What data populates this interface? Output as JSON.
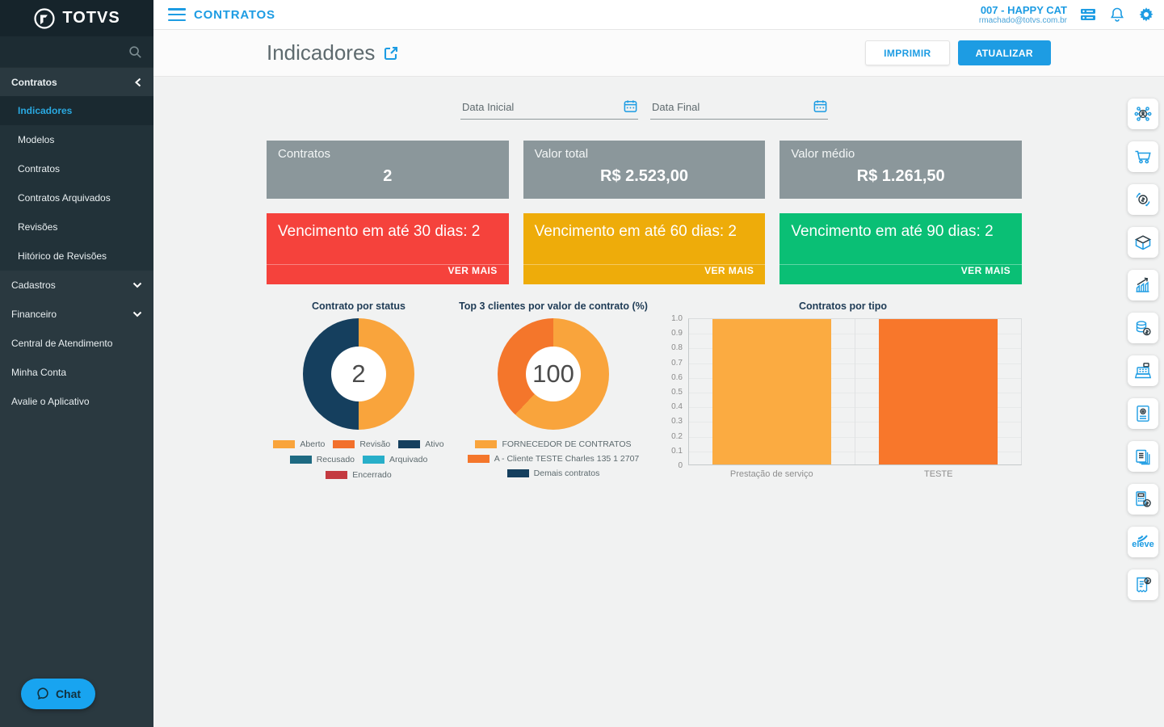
{
  "topbar": {
    "app_title": "CONTRATOS",
    "user_name": "007 - HAPPY CAT",
    "user_email": "rmachado@totvs.com.br"
  },
  "sidebar": {
    "logo_text": "TOTVS",
    "section_label": "Contratos",
    "submenu": [
      {
        "label": "Indicadores",
        "active": true
      },
      {
        "label": "Modelos",
        "active": false
      },
      {
        "label": "Contratos",
        "active": false
      },
      {
        "label": "Contratos Arquivados",
        "active": false
      },
      {
        "label": "Revisões",
        "active": false
      },
      {
        "label": "Hitórico de Revisões",
        "active": false
      }
    ],
    "items": [
      {
        "label": "Cadastros",
        "chevron": true
      },
      {
        "label": "Financeiro",
        "chevron": true
      },
      {
        "label": "Central de Atendimento",
        "chevron": false
      },
      {
        "label": "Minha Conta",
        "chevron": false
      },
      {
        "label": "Avalie o Aplicativo",
        "chevron": false
      }
    ],
    "chat_label": "Chat"
  },
  "header": {
    "title": "Indicadores",
    "print_label": "IMPRIMIR",
    "refresh_label": "ATUALIZAR"
  },
  "filters": {
    "start_placeholder": "Data Inicial",
    "end_placeholder": "Data Final"
  },
  "stat_cards": [
    {
      "label": "Contratos",
      "value": "2"
    },
    {
      "label": "Valor total",
      "value": "R$ 2.523,00"
    },
    {
      "label": "Valor médio",
      "value": "R$ 1.261,50"
    }
  ],
  "alert_cards": [
    {
      "text": "Vencimento em até 30 dias: 2",
      "action": "VER MAIS",
      "color": "#f5423c"
    },
    {
      "text": "Vencimento em até 60 dias: 2",
      "action": "VER MAIS",
      "color": "#eeac0a"
    },
    {
      "text": "Vencimento em até 90 dias: 2",
      "action": "VER MAIS",
      "color": "#0abf75"
    }
  ],
  "chart_data": [
    {
      "type": "donut",
      "title": "Contrato por status",
      "center_value": "2",
      "slices": [
        {
          "label": "Aberto",
          "value": 50,
          "color": "#f9a43c"
        },
        {
          "label": "Ativo",
          "value": 50,
          "color": "#153f5e"
        }
      ],
      "legend": [
        {
          "label": "Aberto",
          "color": "#f9a43c"
        },
        {
          "label": "Revisão",
          "color": "#f2702c"
        },
        {
          "label": "Ativo",
          "color": "#153f5e"
        },
        {
          "label": "Recusado",
          "color": "#1e6a82"
        },
        {
          "label": "Arquivado",
          "color": "#28afc9"
        },
        {
          "label": "Encerrado",
          "color": "#c43a40"
        }
      ]
    },
    {
      "type": "donut",
      "title": "Top 3 clientes por valor de contrato (%)",
      "center_value": "100",
      "slices": [
        {
          "label": "FORNECEDOR DE CONTRATOS",
          "value": 62,
          "color": "#f9a43c"
        },
        {
          "label": "A - Cliente TESTE Charles 135 1 2707",
          "value": 38,
          "color": "#f4762b"
        }
      ],
      "legend": [
        {
          "label": "FORNECEDOR DE CONTRATOS",
          "color": "#f9a43c"
        },
        {
          "label": "A - Cliente TESTE Charles 135 1 2707",
          "color": "#f4762b"
        },
        {
          "label": "Demais contratos",
          "color": "#153f5e"
        }
      ]
    },
    {
      "type": "bar",
      "title": "Contratos por tipo",
      "categories": [
        "Prestação de serviço",
        "TESTE"
      ],
      "values": [
        1,
        1
      ],
      "bar_colors": [
        "#fbab41",
        "#f8772b"
      ],
      "ylim": [
        0,
        1
      ],
      "ytick_step": 0.1,
      "grid": true
    }
  ],
  "rail": {
    "icons": [
      "network-person-icon",
      "shopping-cart-icon",
      "money-network-icon",
      "package-box-icon",
      "growth-chart-icon",
      "coins-icon",
      "cash-register-icon",
      "document-badge-icon",
      "documents-stack-icon",
      "calculator-money-icon",
      "eleve-logo",
      "invoice-money-icon"
    ],
    "eleve_text": "eleve"
  }
}
